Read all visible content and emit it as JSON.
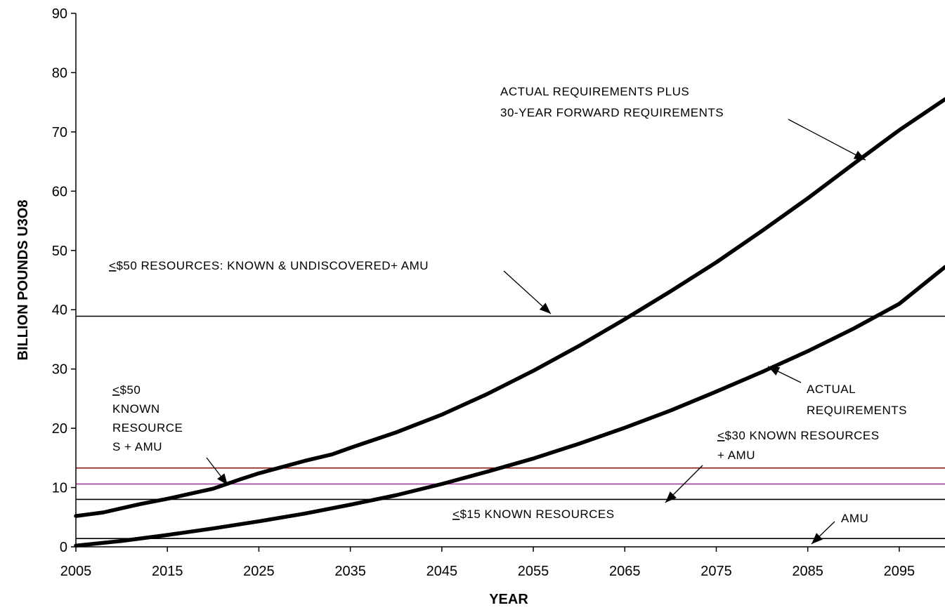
{
  "chart_data": {
    "type": "line",
    "title": "",
    "xlabel": "YEAR",
    "ylabel": "BILLION POUNDS U3O8",
    "xlim": [
      2005,
      2100
    ],
    "ylim": [
      0,
      90
    ],
    "x_ticks": [
      "2005",
      "2015",
      "2025",
      "2035",
      "2045",
      "2055",
      "2065",
      "2075",
      "2085",
      "2095"
    ],
    "y_ticks": [
      "0",
      "10",
      "20",
      "30",
      "40",
      "50",
      "60",
      "70",
      "80",
      "90"
    ],
    "grid": false,
    "legend": "none",
    "series": [
      {
        "color": "#000000",
        "x": [
          2005,
          2008,
          2010,
          2012,
          2015,
          2020,
          2023,
          2025,
          2030,
          2033,
          2035,
          2040,
          2045,
          2050,
          2055,
          2060,
          2065,
          2070,
          2075,
          2080,
          2085,
          2090,
          2095,
          2100
        ],
        "y": [
          5.2,
          5.8,
          6.5,
          7.2,
          8.1,
          9.8,
          11.4,
          12.4,
          14.5,
          15.6,
          16.7,
          19.3,
          22.3,
          25.8,
          29.7,
          33.9,
          38.4,
          43.1,
          48.0,
          53.3,
          58.8,
          64.6,
          70.3,
          75.5
        ]
      },
      {
        "color": "#000000",
        "x": [
          2005,
          2010,
          2015,
          2020,
          2025,
          2030,
          2035,
          2040,
          2045,
          2050,
          2055,
          2060,
          2065,
          2070,
          2075,
          2080,
          2085,
          2090,
          2095,
          2100
        ],
        "y": [
          0.2,
          1.0,
          2.0,
          3.1,
          4.3,
          5.6,
          7.1,
          8.7,
          10.6,
          12.7,
          14.9,
          17.4,
          20.1,
          23.0,
          26.2,
          29.5,
          33.0,
          36.8,
          41.0,
          47.2
        ]
      }
    ],
    "reference_lines": [
      {
        "y": 38.9,
        "color": "#000000"
      },
      {
        "y": 13.3,
        "color": "#8b1a1a"
      },
      {
        "y": 10.6,
        "color": "#9b2f9b"
      },
      {
        "y": 8.0,
        "color": "#000000"
      },
      {
        "y": 1.4,
        "color": "#000000"
      }
    ],
    "annotations": [
      {
        "id": "forward",
        "lines": [
          "ACTUAL REQUIREMENTS PLUS",
          "30-YEAR FORWARD REQUIREMENTS"
        ]
      },
      {
        "id": "res50all",
        "prefix": "<",
        "lines": [
          "$50 RESOURCES: KNOWN & UNDISCOVERED+ AMU"
        ]
      },
      {
        "id": "actual",
        "lines": [
          "ACTUAL",
          "REQUIREMENTS"
        ]
      },
      {
        "id": "known50",
        "prefix": "<",
        "lines": [
          "$50",
          "KNOWN",
          "RESOURCE",
          "S + AMU"
        ]
      },
      {
        "id": "known30",
        "prefix": "<",
        "lines": [
          "$30 KNOWN RESOURCES",
          "+ AMU"
        ]
      },
      {
        "id": "known15",
        "prefix": "<",
        "lines": [
          "$15 KNOWN RESOURCES"
        ]
      },
      {
        "id": "amu",
        "lines": [
          "AMU"
        ]
      }
    ]
  }
}
